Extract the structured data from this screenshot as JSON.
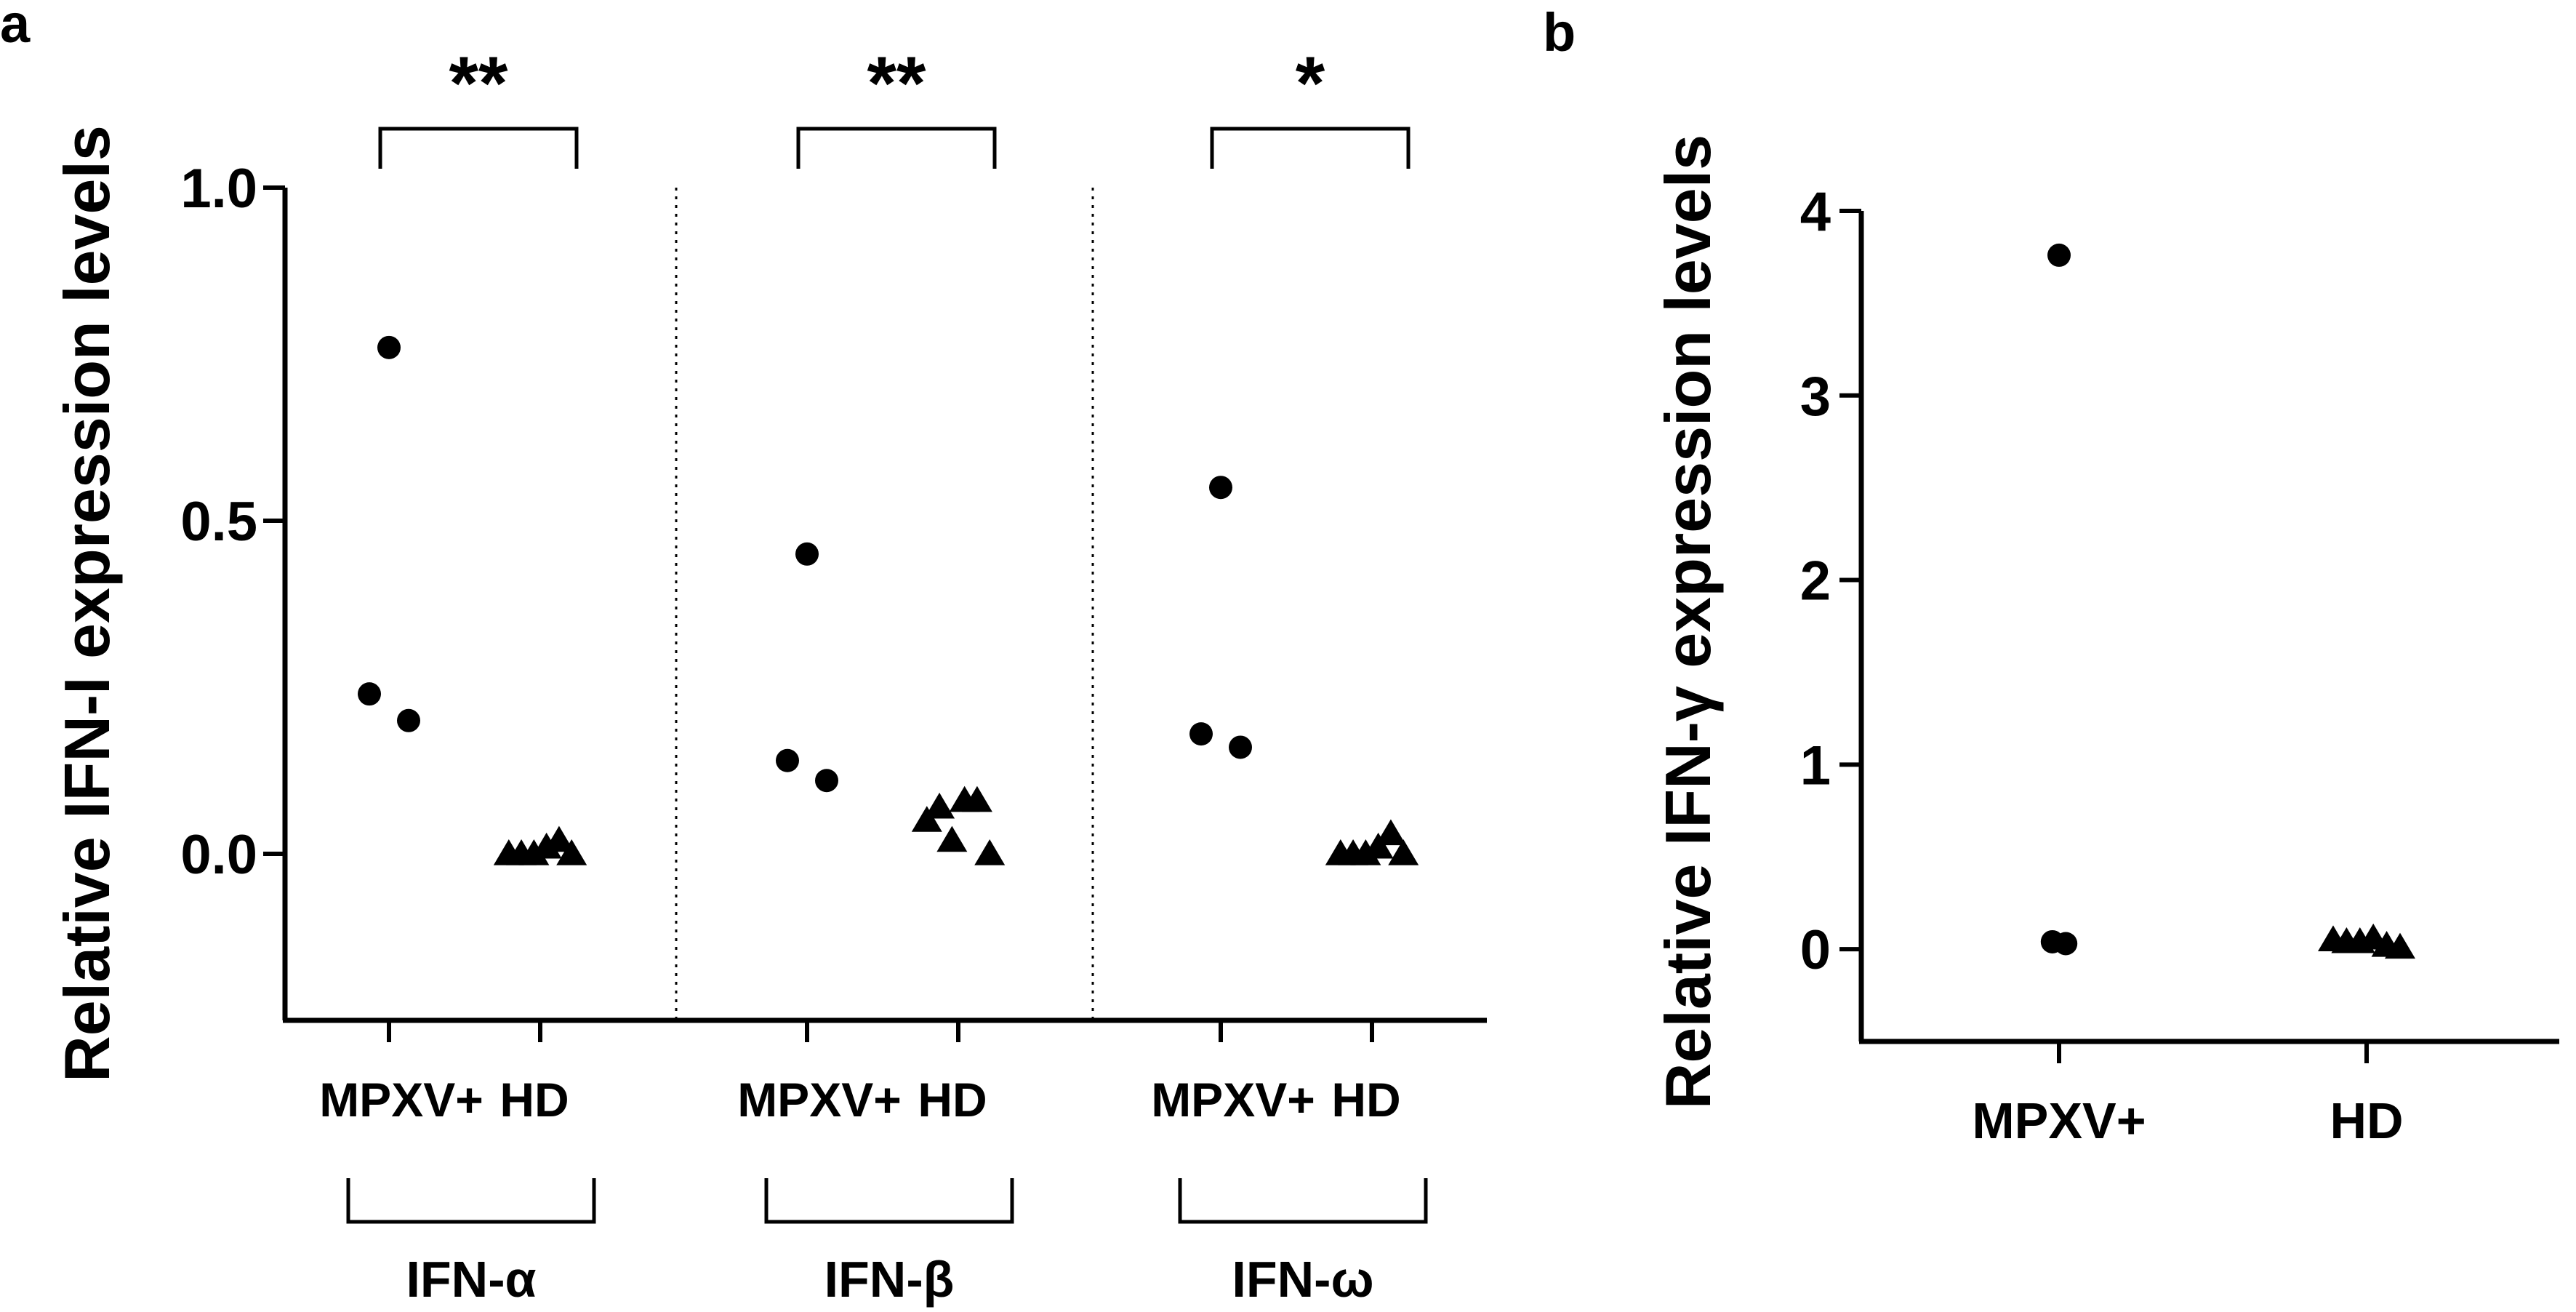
{
  "figure": {
    "panel_a_letter": "a",
    "panel_b_letter": "b"
  },
  "chart_data": [
    {
      "type": "scatter",
      "panel": "a",
      "ylabel": "Relative IFN-I expression levels",
      "ylim": [
        -0.25,
        1.0
      ],
      "yticks": [
        0.0,
        0.5,
        1.0
      ],
      "ytick_labels": [
        "0.0",
        "0.5",
        "1.0"
      ],
      "categories": [
        "MPXV+",
        "HD"
      ],
      "grid": false,
      "legend": "none",
      "groups": [
        {
          "name": "IFN-α",
          "significance": "**",
          "series": [
            {
              "category": "MPXV+",
              "marker": "circle",
              "x_offsets": [
                -0.25,
                0.0,
                0.25
              ],
              "values": [
                0.24,
                0.76,
                0.2
              ]
            },
            {
              "category": "HD",
              "marker": "triangle",
              "x_offsets": [
                -0.4,
                -0.24,
                -0.08,
                0.08,
                0.24,
                0.4
              ],
              "values": [
                0.0,
                0.0,
                0.0,
                0.01,
                0.02,
                0.0
              ]
            }
          ]
        },
        {
          "name": "IFN-β",
          "significance": "**",
          "series": [
            {
              "category": "MPXV+",
              "marker": "circle",
              "x_offsets": [
                -0.25,
                0.0,
                0.25
              ],
              "values": [
                0.14,
                0.45,
                0.11
              ]
            },
            {
              "category": "HD",
              "marker": "triangle",
              "x_offsets": [
                -0.4,
                -0.24,
                -0.08,
                0.08,
                0.24,
                0.4
              ],
              "values": [
                0.05,
                0.07,
                0.02,
                0.08,
                0.08,
                0.0
              ]
            }
          ]
        },
        {
          "name": "IFN-ω",
          "significance": "*",
          "series": [
            {
              "category": "MPXV+",
              "marker": "circle",
              "x_offsets": [
                -0.25,
                0.0,
                0.25
              ],
              "values": [
                0.18,
                0.55,
                0.16
              ]
            },
            {
              "category": "HD",
              "marker": "triangle",
              "x_offsets": [
                -0.4,
                -0.24,
                -0.08,
                0.08,
                0.24,
                0.4
              ],
              "values": [
                0.0,
                0.0,
                0.0,
                0.01,
                0.03,
                0.0
              ]
            }
          ]
        }
      ]
    },
    {
      "type": "scatter",
      "panel": "b",
      "ylabel": "Relative IFN-γ expression levels",
      "ylim": [
        -0.5,
        4.0
      ],
      "yticks": [
        0,
        1,
        2,
        3,
        4
      ],
      "ytick_labels": [
        "0",
        "1",
        "2",
        "3",
        "4"
      ],
      "categories": [
        "MPXV+",
        "HD"
      ],
      "grid": false,
      "legend": "none",
      "series": [
        {
          "category": "MPXV+",
          "marker": "circle",
          "x_offsets": [
            -0.08,
            0.0,
            0.08
          ],
          "values": [
            0.04,
            3.76,
            0.03
          ]
        },
        {
          "category": "HD",
          "marker": "triangle",
          "x_offsets": [
            -0.4,
            -0.24,
            -0.08,
            0.08,
            0.24,
            0.4
          ],
          "values": [
            0.05,
            0.04,
            0.04,
            0.06,
            0.02,
            0.01
          ]
        }
      ]
    }
  ]
}
